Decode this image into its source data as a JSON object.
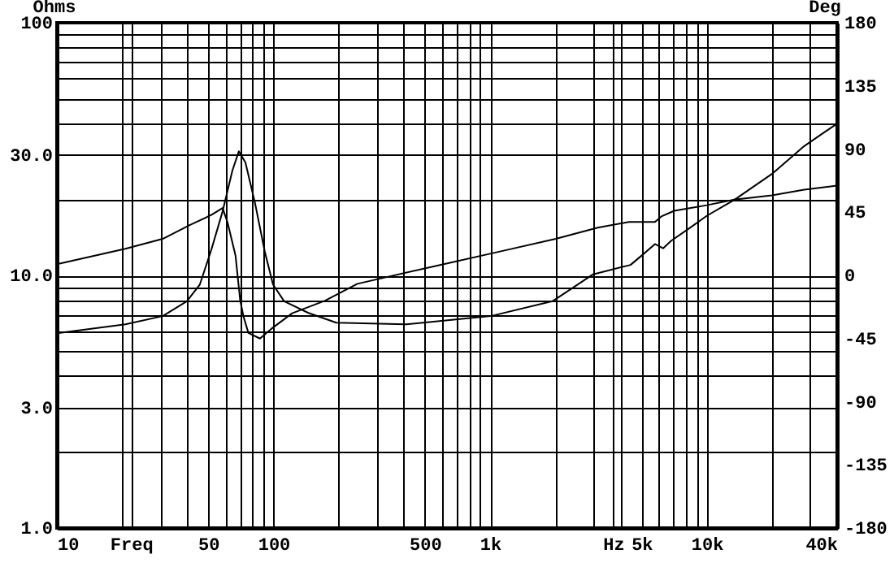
{
  "chart_data": {
    "type": "line",
    "ylabel": "Ohms",
    "y2label": "Deg",
    "log": "xy",
    "grid": true,
    "xlim": [
      10,
      40000
    ],
    "xticks": [
      10,
      {
        "value": 20,
        "label": null
      },
      {
        "value": 22,
        "label": "Freq"
      },
      {
        "value": 30,
        "label": null
      },
      {
        "value": 40,
        "label": null
      },
      50,
      {
        "value": 60,
        "label": null
      },
      {
        "value": 70,
        "label": null
      },
      {
        "value": 80,
        "label": null
      },
      {
        "value": 90,
        "label": null
      },
      100,
      {
        "value": 200,
        "label": null
      },
      {
        "value": 300,
        "label": null
      },
      {
        "value": 400,
        "label": null
      },
      500,
      {
        "value": 600,
        "label": null
      },
      {
        "value": 700,
        "label": null
      },
      {
        "value": 800,
        "label": null
      },
      {
        "value": 900,
        "label": null
      },
      {
        "value": 1000,
        "label": "1k"
      },
      {
        "value": 2000,
        "label": null
      },
      {
        "value": 3000,
        "label": null
      },
      {
        "value": 3700,
        "label": "Hz"
      },
      {
        "value": 4000,
        "label": null
      },
      {
        "value": 5000,
        "label": "5k"
      },
      {
        "value": 6000,
        "label": null
      },
      {
        "value": 7000,
        "label": null
      },
      {
        "value": 8000,
        "label": null
      },
      {
        "value": 9000,
        "label": null
      },
      {
        "value": 10000,
        "label": "10k"
      },
      {
        "value": 20000,
        "label": null
      },
      {
        "value": 30000,
        "label": null
      },
      {
        "value": 40000,
        "label": "40k"
      }
    ],
    "ylim": [
      1,
      100
    ],
    "yticks": [
      {
        "value": 1,
        "label": "1.0"
      },
      {
        "value": 2,
        "label": null
      },
      {
        "value": 3,
        "label": "3.0"
      },
      {
        "value": 4,
        "label": null
      },
      {
        "value": 5,
        "label": null
      },
      {
        "value": 6,
        "label": null
      },
      {
        "value": 7,
        "label": null
      },
      {
        "value": 8,
        "label": null
      },
      {
        "value": 9,
        "label": null
      },
      {
        "value": 10,
        "label": "10.0"
      },
      {
        "value": 20,
        "label": null
      },
      {
        "value": 30,
        "label": "30.0"
      },
      {
        "value": 40,
        "label": null
      },
      {
        "value": 50,
        "label": null
      },
      {
        "value": 60,
        "label": null
      },
      {
        "value": 70,
        "label": null
      },
      {
        "value": 80,
        "label": null
      },
      {
        "value": 90,
        "label": null
      },
      100
    ],
    "y2lim": [
      -180,
      180
    ],
    "y2ticks": [
      -180,
      -135,
      -90,
      -45,
      0,
      45,
      90,
      135,
      180
    ],
    "series": [
      {
        "color": "#000000",
        "x": [
          10,
          20.7,
          30.8,
          39.8,
          45.7,
          51.6,
          58.2,
          64.6,
          69.2,
          74.2,
          82.2,
          91.2,
          99.5,
          112,
          145,
          195,
          410,
          1007,
          1941,
          2990,
          4450,
          5020,
          5770,
          6290,
          6850,
          8430,
          10000,
          13400,
          20000,
          28200,
          40000
        ],
        "values": [
          5.9,
          6.4,
          6.9,
          7.9,
          9.2,
          12.6,
          17.9,
          26,
          31,
          28,
          19.3,
          12.4,
          9.2,
          7.9,
          7.1,
          6.5,
          6.4,
          6.9,
          7.9,
          10.1,
          11,
          12,
          13.3,
          12.8,
          13.7,
          15.5,
          17.2,
          19.9,
          25.2,
          32.5,
          39.9
        ]
      },
      {
        "color": "#000000",
        "axis": "y2",
        "x": [
          10,
          20.7,
          30.8,
          41.2,
          51.6,
          58.2,
          61.3,
          66.8,
          70.2,
          72.9,
          76.6,
          86.6,
          97.9,
          122,
          173,
          244,
          610,
          1110,
          2010,
          3140,
          4370,
          5770,
          6180,
          7080,
          10000,
          13400,
          20000,
          28200,
          40000
        ],
        "values": [
          8,
          19,
          26,
          36,
          43,
          48,
          38,
          14,
          -18,
          -30,
          -41,
          -45,
          -38,
          -27,
          -18,
          -6,
          8,
          17,
          26,
          34,
          38,
          38,
          42,
          46,
          50,
          54,
          57,
          61,
          64
        ]
      }
    ]
  }
}
